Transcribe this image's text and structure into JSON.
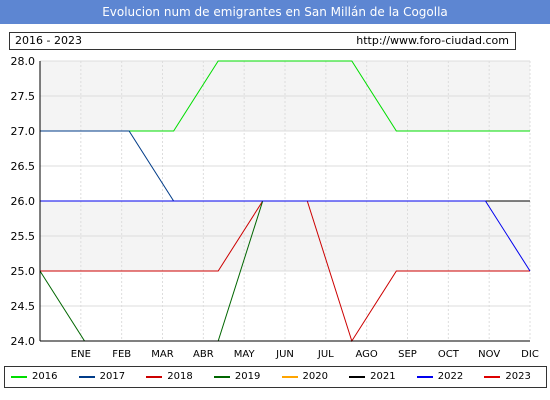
{
  "header": {
    "title": "Evolucion num de emigrantes en San Millán de la Cogolla",
    "years_range": "2016 - 2023",
    "url": "http://www.foro-ciudad.com"
  },
  "chart_data": {
    "type": "line",
    "title": "Evolucion num de emigrantes en San Millán de la Cogolla",
    "categories": [
      "ENE",
      "FEB",
      "MAR",
      "ABR",
      "MAY",
      "JUN",
      "JUL",
      "AGO",
      "SEP",
      "OCT",
      "NOV",
      "DIC"
    ],
    "ylim": [
      24.0,
      28.0
    ],
    "yticks": [
      "24.0",
      "24.5",
      "25.0",
      "25.5",
      "26.0",
      "26.5",
      "27.0",
      "27.5",
      "28.0"
    ],
    "grid": true,
    "legend_position": "bottom",
    "series": [
      {
        "name": "2016",
        "color": "#00dd00",
        "values": [
          27,
          27,
          27,
          27,
          28,
          28,
          28,
          28,
          27,
          27,
          27,
          27
        ]
      },
      {
        "name": "2017",
        "color": "#003b88",
        "values": [
          27,
          27,
          27,
          26,
          26,
          26,
          26,
          26,
          26,
          26,
          26,
          26
        ]
      },
      {
        "name": "2018",
        "color": "#cc0000",
        "values": [
          25,
          25,
          25,
          25,
          25,
          26,
          26,
          24,
          25,
          25,
          25,
          25
        ]
      },
      {
        "name": "2019",
        "color": "#006600",
        "values": [
          25,
          24,
          24,
          24,
          24,
          26,
          null,
          null,
          null,
          null,
          null,
          null
        ]
      },
      {
        "name": "2020",
        "color": "#ffa500",
        "values": [
          null,
          null,
          null,
          null,
          null,
          null,
          null,
          null,
          null,
          null,
          null,
          null
        ]
      },
      {
        "name": "2021",
        "color": "#000000",
        "values": [
          26,
          26,
          26,
          26,
          26,
          26,
          26,
          26,
          26,
          26,
          26,
          26
        ]
      },
      {
        "name": "2022",
        "color": "#0000ee",
        "values": [
          26,
          26,
          26,
          26,
          26,
          26,
          26,
          26,
          26,
          26,
          26,
          25
        ]
      },
      {
        "name": "2023",
        "color": "#dd0000",
        "values": [
          null,
          null,
          null,
          null,
          null,
          null,
          null,
          null,
          null,
          null,
          null,
          null
        ]
      }
    ]
  }
}
